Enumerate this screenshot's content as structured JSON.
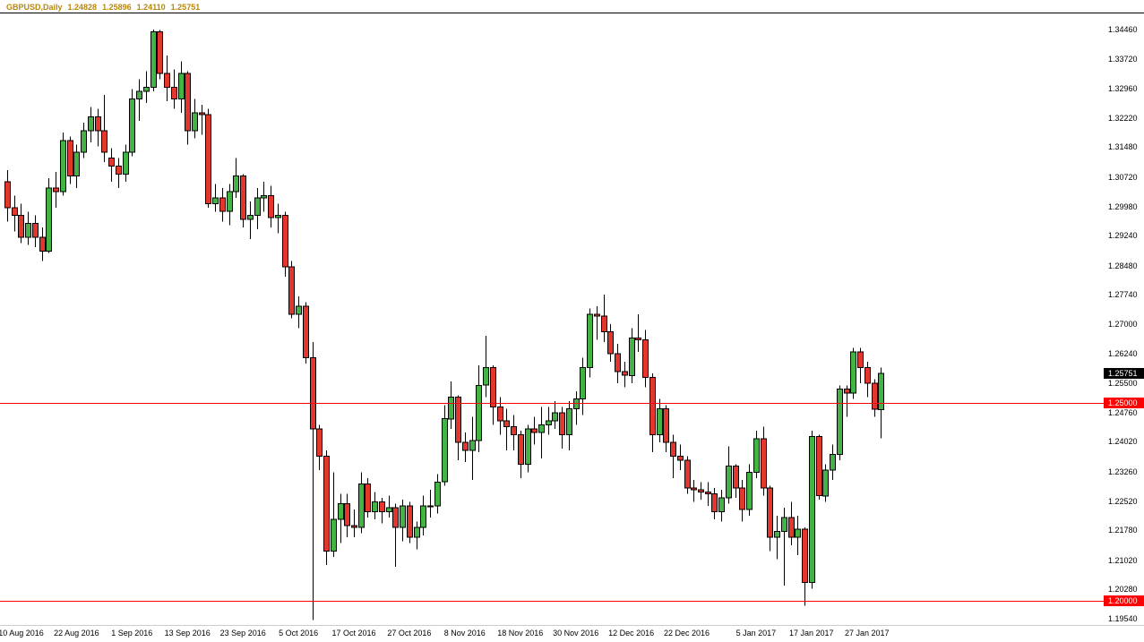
{
  "header": {
    "symbol_period": "GBPUSD,Daily",
    "open": "1.24828",
    "high": "1.25896",
    "low": "1.24110",
    "close": "1.25751"
  },
  "chart_data": {
    "type": "candlestick",
    "title": "GBPUSD,Daily",
    "symbol": "GBPUSD",
    "timeframe": "Daily",
    "grid": "off",
    "legend_position": "none",
    "y_range": {
      "min": 1.19378,
      "max": 1.34868
    },
    "colors": {
      "up": "#44B244",
      "down": "#E3362C",
      "wick": "#000000",
      "border": "#000000",
      "hline": "#FF0000",
      "current_tag_bg": "#000000",
      "quote_text": "#B8860B",
      "axis_text": "#000000"
    },
    "price_axis_labels": [
      "1.34460",
      "1.33720",
      "1.32960",
      "1.32220",
      "1.31480",
      "1.30720",
      "1.29980",
      "1.29240",
      "1.28480",
      "1.27740",
      "1.27000",
      "1.26240",
      "1.25500",
      "1.24760",
      "1.24020",
      "1.23260",
      "1.22520",
      "1.21780",
      "1.21020",
      "1.20280",
      "1.19540"
    ],
    "time_axis_labels": [
      {
        "label": "10 Aug 2016",
        "index": 2
      },
      {
        "label": "22 Aug 2016",
        "index": 10
      },
      {
        "label": "1 Sep 2016",
        "index": 18
      },
      {
        "label": "13 Sep 2016",
        "index": 26
      },
      {
        "label": "23 Sep 2016",
        "index": 34
      },
      {
        "label": "5 Oct 2016",
        "index": 42
      },
      {
        "label": "17 Oct 2016",
        "index": 50
      },
      {
        "label": "27 Oct 2016",
        "index": 58
      },
      {
        "label": "8 Nov 2016",
        "index": 66
      },
      {
        "label": "18 Nov 2016",
        "index": 74
      },
      {
        "label": "30 Nov 2016",
        "index": 82
      },
      {
        "label": "12 Dec 2016",
        "index": 90
      },
      {
        "label": "22 Dec 2016",
        "index": 98
      },
      {
        "label": "5 Jan 2017",
        "index": 108
      },
      {
        "label": "17 Jan 2017",
        "index": 116
      },
      {
        "label": "27 Jan 2017",
        "index": 124
      }
    ],
    "hlines": [
      {
        "price": 1.25,
        "label": "1.25000"
      },
      {
        "price": 1.2,
        "label": "1.20000"
      }
    ],
    "current_price": {
      "value": 1.25751,
      "label": "1.25751"
    },
    "candles": [
      [
        "8 Aug 2016",
        1.306,
        1.309,
        1.296,
        1.2995
      ],
      [
        "9 Aug 2016",
        1.2995,
        1.3025,
        1.2935,
        1.2975
      ],
      [
        "10 Aug 2016",
        1.2975,
        1.3005,
        1.2905,
        1.292
      ],
      [
        "11 Aug 2016",
        1.292,
        1.2985,
        1.29,
        1.2955
      ],
      [
        "12 Aug 2016",
        1.2955,
        1.2975,
        1.2895,
        1.292
      ],
      [
        "15 Aug 2016",
        1.292,
        1.2945,
        1.286,
        1.2885
      ],
      [
        "16 Aug 2016",
        1.2885,
        1.307,
        1.288,
        1.3045
      ],
      [
        "17 Aug 2016",
        1.3045,
        1.3085,
        1.2995,
        1.3035
      ],
      [
        "18 Aug 2016",
        1.3035,
        1.3185,
        1.3025,
        1.3165
      ],
      [
        "19 Aug 2016",
        1.3165,
        1.3175,
        1.3055,
        1.3075
      ],
      [
        "22 Aug 2016",
        1.3075,
        1.3155,
        1.3045,
        1.3135
      ],
      [
        "23 Aug 2016",
        1.3135,
        1.321,
        1.312,
        1.319
      ],
      [
        "24 Aug 2016",
        1.319,
        1.325,
        1.316,
        1.3225
      ],
      [
        "25 Aug 2016",
        1.3225,
        1.3245,
        1.315,
        1.319
      ],
      [
        "26 Aug 2016",
        1.319,
        1.328,
        1.311,
        1.3135
      ],
      [
        "29 Aug 2016",
        1.312,
        1.3145,
        1.306,
        1.31
      ],
      [
        "30 Aug 2016",
        1.31,
        1.312,
        1.3045,
        1.308
      ],
      [
        "31 Aug 2016",
        1.308,
        1.3155,
        1.306,
        1.3135
      ],
      [
        "1 Sep 2016",
        1.3135,
        1.3295,
        1.3125,
        1.327
      ],
      [
        "2 Sep 2016",
        1.327,
        1.332,
        1.3215,
        1.329
      ],
      [
        "5 Sep 2016",
        1.329,
        1.334,
        1.326,
        1.33
      ],
      [
        "6 Sep 2016",
        1.33,
        1.3446,
        1.329,
        1.344
      ],
      [
        "7 Sep 2016",
        1.344,
        1.3445,
        1.332,
        1.3335
      ],
      [
        "8 Sep 2016",
        1.3335,
        1.338,
        1.3265,
        1.33
      ],
      [
        "9 Sep 2016",
        1.33,
        1.3345,
        1.3245,
        1.327
      ],
      [
        "12 Sep 2016",
        1.327,
        1.3365,
        1.3235,
        1.3335
      ],
      [
        "13 Sep 2016",
        1.3335,
        1.334,
        1.3155,
        1.319
      ],
      [
        "14 Sep 2016",
        1.319,
        1.327,
        1.317,
        1.3235
      ],
      [
        "15 Sep 2016",
        1.3235,
        1.3255,
        1.318,
        1.323
      ],
      [
        "16 Sep 2016",
        1.323,
        1.3245,
        1.2995,
        1.3005
      ],
      [
        "19 Sep 2016",
        1.3005,
        1.3055,
        1.2985,
        1.302
      ],
      [
        "20 Sep 2016",
        1.302,
        1.3045,
        1.296,
        1.2985
      ],
      [
        "21 Sep 2016",
        1.2985,
        1.3055,
        1.295,
        1.3035
      ],
      [
        "22 Sep 2016",
        1.3035,
        1.312,
        1.302,
        1.3075
      ],
      [
        "23 Sep 2016",
        1.3075,
        1.308,
        1.2945,
        1.2965
      ],
      [
        "26 Sep 2016",
        1.2965,
        1.301,
        1.2915,
        1.2975
      ],
      [
        "27 Sep 2016",
        1.2975,
        1.3045,
        1.294,
        1.302
      ],
      [
        "28 Sep 2016",
        1.302,
        1.306,
        1.2985,
        1.3025
      ],
      [
        "29 Sep 2016",
        1.3025,
        1.305,
        1.2945,
        1.297
      ],
      [
        "30 Sep 2016",
        1.297,
        1.3005,
        1.293,
        1.2975
      ],
      [
        "3 Oct 2016",
        1.2975,
        1.2985,
        1.282,
        1.2845
      ],
      [
        "4 Oct 2016",
        1.2845,
        1.286,
        1.2715,
        1.2725
      ],
      [
        "5 Oct 2016",
        1.2725,
        1.277,
        1.269,
        1.2745
      ],
      [
        "6 Oct 2016",
        1.2745,
        1.2755,
        1.26,
        1.2615
      ],
      [
        "7 Oct 2016",
        1.2615,
        1.2655,
        1.195,
        1.2435
      ],
      [
        "10 Oct 2016",
        1.2435,
        1.2445,
        1.233,
        1.2365
      ],
      [
        "11 Oct 2016",
        1.2365,
        1.238,
        1.209,
        1.2125
      ],
      [
        "12 Oct 2016",
        1.2125,
        1.2325,
        1.211,
        1.2205
      ],
      [
        "13 Oct 2016",
        1.2205,
        1.227,
        1.2145,
        1.2245
      ],
      [
        "14 Oct 2016",
        1.2245,
        1.227,
        1.216,
        1.219
      ],
      [
        "17 Oct 2016",
        1.219,
        1.223,
        1.216,
        1.2185
      ],
      [
        "18 Oct 2016",
        1.2185,
        1.2325,
        1.217,
        1.2295
      ],
      [
        "19 Oct 2016",
        1.2295,
        1.231,
        1.221,
        1.2225
      ],
      [
        "20 Oct 2016",
        1.2225,
        1.2275,
        1.2205,
        1.225
      ],
      [
        "21 Oct 2016",
        1.225,
        1.226,
        1.2195,
        1.2225
      ],
      [
        "24 Oct 2016",
        1.2225,
        1.2265,
        1.221,
        1.2235
      ],
      [
        "25 Oct 2016",
        1.2235,
        1.2245,
        1.2085,
        1.2185
      ],
      [
        "26 Oct 2016",
        1.2185,
        1.2255,
        1.215,
        1.224
      ],
      [
        "27 Oct 2016",
        1.224,
        1.225,
        1.2145,
        1.216
      ],
      [
        "28 Oct 2016",
        1.216,
        1.22,
        1.213,
        1.2185
      ],
      [
        "31 Oct 2016",
        1.2185,
        1.2265,
        1.2165,
        1.224
      ],
      [
        "1 Nov 2016",
        1.224,
        1.228,
        1.221,
        1.224
      ],
      [
        "2 Nov 2016",
        1.224,
        1.232,
        1.222,
        1.23
      ],
      [
        "3 Nov 2016",
        1.23,
        1.2495,
        1.229,
        1.246
      ],
      [
        "4 Nov 2016",
        1.246,
        1.2555,
        1.2435,
        1.2515
      ],
      [
        "7 Nov 2016",
        1.2515,
        1.252,
        1.2355,
        1.24
      ],
      [
        "8 Nov 2016",
        1.24,
        1.2425,
        1.235,
        1.238
      ],
      [
        "9 Nov 2016",
        1.238,
        1.2465,
        1.2305,
        1.2405
      ],
      [
        "10 Nov 2016",
        1.2405,
        1.2595,
        1.2375,
        1.2545
      ],
      [
        "11 Nov 2016",
        1.2545,
        1.267,
        1.2515,
        1.259
      ],
      [
        "14 Nov 2016",
        1.259,
        1.2595,
        1.2445,
        1.249
      ],
      [
        "15 Nov 2016",
        1.249,
        1.2515,
        1.242,
        1.2455
      ],
      [
        "16 Nov 2016",
        1.2455,
        1.2485,
        1.238,
        1.244
      ],
      [
        "17 Nov 2016",
        1.244,
        1.247,
        1.238,
        1.242
      ],
      [
        "18 Nov 2016",
        1.242,
        1.243,
        1.231,
        1.2345
      ],
      [
        "21 Nov 2016",
        1.2345,
        1.2445,
        1.2325,
        1.2435
      ],
      [
        "22 Nov 2016",
        1.2435,
        1.2465,
        1.2395,
        1.2425
      ],
      [
        "23 Nov 2016",
        1.2425,
        1.249,
        1.236,
        1.2445
      ],
      [
        "24 Nov 2016",
        1.2445,
        1.249,
        1.242,
        1.2455
      ],
      [
        "25 Nov 2016",
        1.2455,
        1.2505,
        1.2435,
        1.2475
      ],
      [
        "28 Nov 2016",
        1.2475,
        1.249,
        1.2385,
        1.242
      ],
      [
        "29 Nov 2016",
        1.242,
        1.2505,
        1.238,
        1.2485
      ],
      [
        "30 Nov 2016",
        1.2485,
        1.253,
        1.2445,
        1.251
      ],
      [
        "1 Dec 2016",
        1.251,
        1.2615,
        1.247,
        1.259
      ],
      [
        "2 Dec 2016",
        1.259,
        1.274,
        1.2565,
        1.2725
      ],
      [
        "5 Dec 2016",
        1.2725,
        1.2745,
        1.266,
        1.272
      ],
      [
        "6 Dec 2016",
        1.272,
        1.2775,
        1.2655,
        1.268
      ],
      [
        "7 Dec 2016",
        1.268,
        1.27,
        1.2605,
        1.2625
      ],
      [
        "8 Dec 2016",
        1.2625,
        1.265,
        1.255,
        1.258
      ],
      [
        "9 Dec 2016",
        1.258,
        1.2605,
        1.254,
        1.257
      ],
      [
        "12 Dec 2016",
        1.257,
        1.269,
        1.255,
        1.2665
      ],
      [
        "13 Dec 2016",
        1.2665,
        1.2725,
        1.263,
        1.266
      ],
      [
        "14 Dec 2016",
        1.266,
        1.2685,
        1.254,
        1.2565
      ],
      [
        "15 Dec 2016",
        1.2565,
        1.2575,
        1.2375,
        1.242
      ],
      [
        "16 Dec 2016",
        1.242,
        1.251,
        1.24,
        1.2485
      ],
      [
        "19 Dec 2016",
        1.2485,
        1.2495,
        1.2375,
        1.24
      ],
      [
        "20 Dec 2016",
        1.24,
        1.242,
        1.231,
        1.2365
      ],
      [
        "21 Dec 2016",
        1.2365,
        1.2395,
        1.233,
        1.2355
      ],
      [
        "22 Dec 2016",
        1.2355,
        1.2365,
        1.227,
        1.2285
      ],
      [
        "23 Dec 2016",
        1.2285,
        1.2305,
        1.225,
        1.228
      ],
      [
        "26 Dec 2016",
        1.228,
        1.23,
        1.2255,
        1.2275
      ],
      [
        "27 Dec 2016",
        1.2275,
        1.23,
        1.224,
        1.227
      ],
      [
        "28 Dec 2016",
        1.227,
        1.2285,
        1.2205,
        1.2225
      ],
      [
        "29 Dec 2016",
        1.2225,
        1.228,
        1.22,
        1.226
      ],
      [
        "30 Dec 2016",
        1.226,
        1.239,
        1.2245,
        1.234
      ],
      [
        "2 Jan 2017",
        1.234,
        1.2345,
        1.226,
        1.2285
      ],
      [
        "3 Jan 2017",
        1.2285,
        1.2305,
        1.22,
        1.223
      ],
      [
        "4 Jan 2017",
        1.223,
        1.2345,
        1.2215,
        1.2325
      ],
      [
        "5 Jan 2017",
        1.2325,
        1.243,
        1.231,
        1.241
      ],
      [
        "6 Jan 2017",
        1.241,
        1.244,
        1.2265,
        1.2285
      ],
      [
        "9 Jan 2017",
        1.2285,
        1.229,
        1.2125,
        1.216
      ],
      [
        "10 Jan 2017",
        1.216,
        1.2215,
        1.2105,
        1.2175
      ],
      [
        "11 Jan 2017",
        1.2175,
        1.2235,
        1.2038,
        1.221
      ],
      [
        "12 Jan 2017",
        1.221,
        1.225,
        1.214,
        1.216
      ],
      [
        "13 Jan 2017",
        1.216,
        1.2215,
        1.2115,
        1.218
      ],
      [
        "16 Jan 2017",
        1.218,
        1.2185,
        1.1986,
        1.2045
      ],
      [
        "17 Jan 2017",
        1.2045,
        1.243,
        1.203,
        1.2415
      ],
      [
        "18 Jan 2017",
        1.2415,
        1.242,
        1.2255,
        1.2265
      ],
      [
        "19 Jan 2017",
        1.2265,
        1.2345,
        1.225,
        1.233
      ],
      [
        "20 Jan 2017",
        1.233,
        1.2395,
        1.2305,
        1.237
      ],
      [
        "23 Jan 2017",
        1.237,
        1.2545,
        1.2355,
        1.2535
      ],
      [
        "24 Jan 2017",
        1.2535,
        1.2545,
        1.2465,
        1.2525
      ],
      [
        "25 Jan 2017",
        1.2525,
        1.264,
        1.251,
        1.263
      ],
      [
        "26 Jan 2017",
        1.263,
        1.264,
        1.255,
        1.259
      ],
      [
        "27 Jan 2017",
        1.259,
        1.2605,
        1.2515,
        1.255
      ],
      [
        "30 Jan 2017",
        1.255,
        1.256,
        1.2465,
        1.2485
      ],
      [
        "31 Jan 2017",
        1.24828,
        1.25896,
        1.2411,
        1.25751
      ]
    ]
  }
}
